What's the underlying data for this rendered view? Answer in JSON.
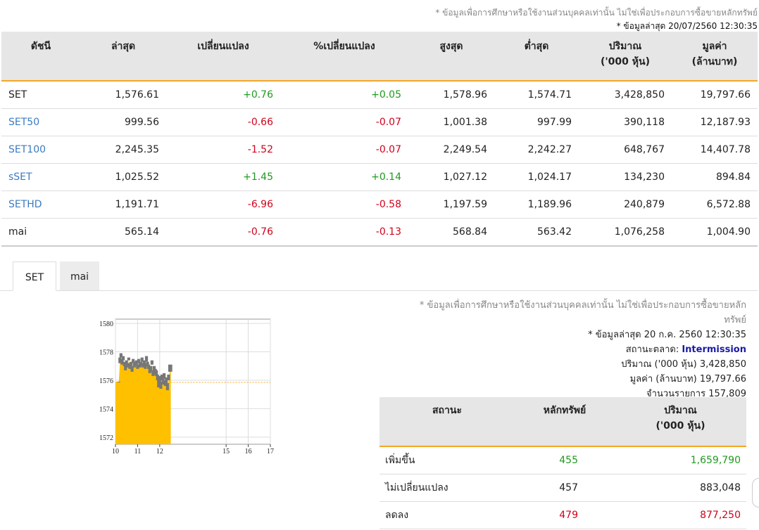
{
  "header": {
    "disclaimer": "* ข้อมูลเพื่อการศึกษาหรือใช้งานส่วนบุคคลเท่านั้น ไม่ใช่เพื่อประกอบการซื้อขายหลักทรัพย์",
    "last_update": "* ข้อมูลล่าสุด 20/07/2560 12:30:35"
  },
  "index_table": {
    "columns": [
      "ดัชนี",
      "ล่าสุด",
      "เปลี่ยนแปลง",
      "%เปลี่ยนแปลง",
      "สูงสุด",
      "ต่ำสุด",
      "ปริมาณ",
      "มูลค่า"
    ],
    "column_units": {
      "volume": "('000 หุ้น)",
      "value": "(ล้านบาท)"
    },
    "rows": [
      {
        "name": "SET",
        "last": "1,576.61",
        "change": "+0.76",
        "pct": "+0.05",
        "high": "1,578.96",
        "low": "1,574.71",
        "volume": "3,428,850",
        "value": "19,797.66",
        "link": false,
        "dir": "up"
      },
      {
        "name": "SET50",
        "last": "999.56",
        "change": "-0.66",
        "pct": "-0.07",
        "high": "1,001.38",
        "low": "997.99",
        "volume": "390,118",
        "value": "12,187.93",
        "link": true,
        "dir": "dn"
      },
      {
        "name": "SET100",
        "last": "2,245.35",
        "change": "-1.52",
        "pct": "-0.07",
        "high": "2,249.54",
        "low": "2,242.27",
        "volume": "648,767",
        "value": "14,407.78",
        "link": true,
        "dir": "dn"
      },
      {
        "name": "sSET",
        "last": "1,025.52",
        "change": "+1.45",
        "pct": "+0.14",
        "high": "1,027.12",
        "low": "1,024.17",
        "volume": "134,230",
        "value": "894.84",
        "link": true,
        "dir": "up"
      },
      {
        "name": "SETHD",
        "last": "1,191.71",
        "change": "-6.96",
        "pct": "-0.58",
        "high": "1,197.59",
        "low": "1,189.96",
        "volume": "240,879",
        "value": "6,572.88",
        "link": true,
        "dir": "dn"
      },
      {
        "name": "mai",
        "last": "565.14",
        "change": "-0.76",
        "pct": "-0.13",
        "high": "568.84",
        "low": "563.42",
        "volume": "1,076,258",
        "value": "1,004.90",
        "link": false,
        "dir": "dn"
      }
    ]
  },
  "tabs": [
    {
      "label": "SET",
      "active": true
    },
    {
      "label": "mai",
      "active": false
    }
  ],
  "chart_data": {
    "type": "area",
    "title": "",
    "xlabel": "",
    "ylabel": "",
    "x_ticks": [
      "10",
      "11",
      "12",
      "15",
      "16",
      "17"
    ],
    "y_ticks": [
      "1572",
      "1574",
      "1576",
      "1578",
      "1580"
    ],
    "ylim": [
      1571.5,
      1580.3
    ],
    "xlim": [
      10,
      17
    ],
    "previous_close": 1575.85,
    "grid": true,
    "series": [
      {
        "x": [
          10.0,
          10.05,
          10.1,
          10.15,
          10.2,
          10.25,
          10.3,
          10.35,
          10.4,
          10.45,
          10.5,
          10.55,
          10.6,
          10.65,
          10.7,
          10.75,
          10.8,
          10.85,
          10.9,
          10.95,
          11.0,
          11.05,
          11.1,
          11.15,
          11.2,
          11.25,
          11.3,
          11.35,
          11.4,
          11.45,
          11.5,
          11.55,
          11.6,
          11.65,
          11.7,
          11.75,
          11.8,
          11.85,
          11.9,
          11.95,
          12.0,
          12.05,
          12.1,
          12.15,
          12.2,
          12.25,
          12.3,
          12.35,
          12.4,
          12.45,
          12.5
        ],
        "values": [
          1575.9,
          1575.9,
          1575.9,
          1575.85,
          1577.2,
          1577.6,
          1577.1,
          1577.4,
          1577.0,
          1576.7,
          1577.1,
          1576.9,
          1577.4,
          1576.8,
          1577.0,
          1576.6,
          1577.2,
          1576.9,
          1577.0,
          1577.1,
          1576.8,
          1577.2,
          1576.9,
          1577.0,
          1577.3,
          1576.9,
          1577.1,
          1576.8,
          1577.3,
          1577.0,
          1576.8,
          1576.5,
          1576.6,
          1577.1,
          1576.3,
          1576.6,
          1576.4,
          1576.3,
          1576.0,
          1575.5,
          1575.9,
          1575.4,
          1576.0,
          1575.7,
          1576.1,
          1575.6,
          1575.8,
          1575.3,
          1576.0,
          1576.6,
          1576.6
        ],
        "highs": [
          1575.9,
          1575.9,
          1575.9,
          1575.9,
          1577.6,
          1577.9,
          1577.5,
          1577.7,
          1577.3,
          1577.1,
          1577.4,
          1577.2,
          1577.6,
          1577.2,
          1577.3,
          1577.0,
          1577.5,
          1577.2,
          1577.3,
          1577.4,
          1577.1,
          1577.5,
          1577.2,
          1577.3,
          1577.6,
          1577.2,
          1577.4,
          1577.2,
          1577.7,
          1577.3,
          1577.1,
          1576.9,
          1577.0,
          1577.4,
          1576.7,
          1577.0,
          1576.8,
          1576.7,
          1576.4,
          1576.0,
          1576.3,
          1575.9,
          1576.4,
          1576.1,
          1576.5,
          1576.0,
          1576.2,
          1575.8,
          1576.4,
          1577.1,
          1577.1
        ],
        "color": "#ffc000",
        "range_color": "#777777"
      }
    ]
  },
  "market_info": {
    "disclaimer_line1": "* ข้อมูลเพื่อการศึกษาหรือใช้งานส่วนบุคคลเท่านั้น ไม่ใช่เพื่อประกอบการซื้อขายหลัก",
    "disclaimer_line2": "ทรัพย์",
    "last_update": "* ข้อมูลล่าสุด 20 ก.ค. 2560 12:30:35",
    "status_label": "สถานะตลาด:",
    "status_value": "Intermission",
    "volume_label": "ปริมาณ ('000 หุ้น)",
    "volume_value": "3,428,850",
    "value_label": "มูลค่า (ล้านบาท)",
    "value_value": "19,797.66",
    "deals_label": "จำนวนรายการ",
    "deals_value": "157,809"
  },
  "breadth_table": {
    "columns": [
      "สถานะ",
      "หลักทรัพย์",
      "ปริมาณ"
    ],
    "volume_unit": "('000 หุ้น)",
    "rows": [
      {
        "status": "เพิ่มขึ้น",
        "count": "455",
        "volume": "1,659,790",
        "dir": "up"
      },
      {
        "status": "ไม่เปลี่ยนแปลง",
        "count": "457",
        "volume": "883,048",
        "dir": "none"
      },
      {
        "status": "ลดลง",
        "count": "479",
        "volume": "877,250",
        "dir": "dn"
      }
    ]
  },
  "colors": {
    "up": "#1f9a1f",
    "down": "#d0021b",
    "link": "#3b7bbf",
    "accent": "#f5a623",
    "status": "#1a1aa6"
  }
}
